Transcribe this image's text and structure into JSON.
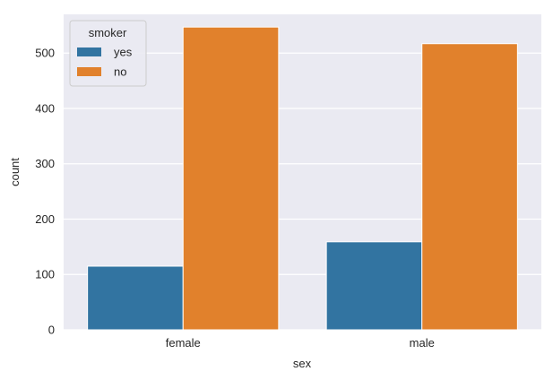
{
  "chart_data": {
    "type": "bar",
    "title": "",
    "xlabel": "sex",
    "ylabel": "count",
    "categories": [
      "female",
      "male"
    ],
    "series": [
      {
        "name": "yes",
        "values": [
          115,
          159
        ],
        "color": "#3274a1"
      },
      {
        "name": "no",
        "values": [
          547,
          517
        ],
        "color": "#e1812c"
      }
    ],
    "ylim": [
      0,
      570
    ],
    "yticks": [
      0,
      100,
      200,
      300,
      400,
      500
    ],
    "grid": true,
    "background": "#eaeaf2",
    "legend": {
      "title": "smoker",
      "placement": "top-left",
      "entries": [
        "yes",
        "no"
      ]
    }
  }
}
